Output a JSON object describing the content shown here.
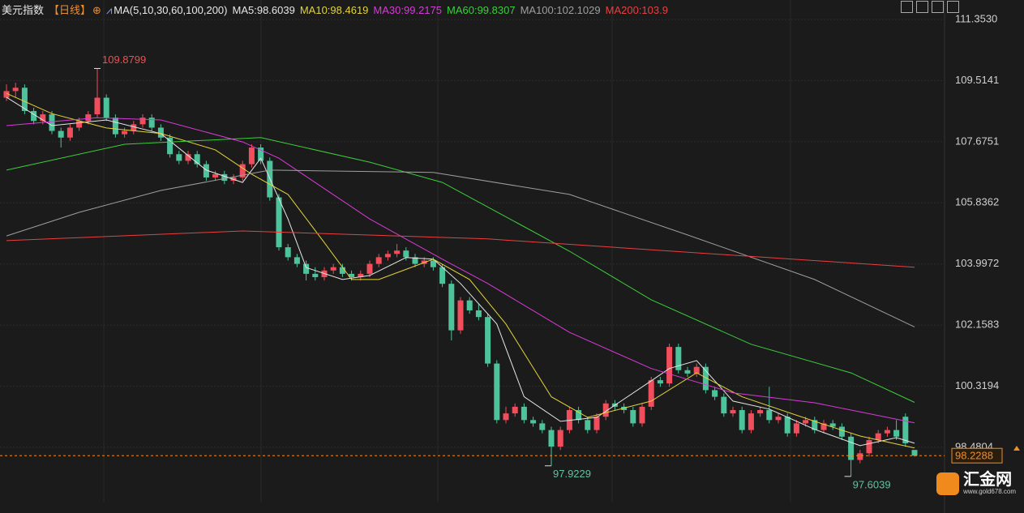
{
  "chart_data": {
    "type": "candlestick",
    "title": "美元指数",
    "subtitle": "【日线】",
    "indicator": "MA(5,10,30,60,100,200)",
    "up_color": "#f04e5c",
    "down_color": "#4cc39a",
    "ylim": [
      96.82,
      111.94
    ],
    "yticks": [
      {
        "value": 111.353,
        "label": "111.3530"
      },
      109.5141,
      107.6751,
      105.8362,
      103.9972,
      102.1583,
      100.3194,
      98.4804
    ],
    "grid": true,
    "ohlc": [
      [
        109.0,
        109.4,
        108.9,
        109.2
      ],
      [
        109.2,
        109.45,
        109.0,
        109.3
      ],
      [
        109.3,
        109.4,
        108.5,
        108.6
      ],
      [
        108.6,
        108.7,
        108.2,
        108.3
      ],
      [
        108.3,
        108.6,
        108.2,
        108.5
      ],
      [
        108.5,
        108.6,
        107.9,
        108.0
      ],
      [
        108.0,
        108.1,
        107.5,
        107.8
      ],
      [
        107.8,
        108.2,
        107.7,
        108.1
      ],
      [
        108.1,
        108.4,
        108.0,
        108.3
      ],
      [
        108.3,
        108.6,
        108.2,
        108.5
      ],
      [
        108.5,
        109.8799,
        108.4,
        109.0
      ],
      [
        109.0,
        109.1,
        108.3,
        108.4
      ],
      [
        108.4,
        108.5,
        107.8,
        107.9
      ],
      [
        107.9,
        108.1,
        107.8,
        108.0
      ],
      [
        108.0,
        108.3,
        107.9,
        108.2
      ],
      [
        108.2,
        108.5,
        108.1,
        108.4
      ],
      [
        108.4,
        108.5,
        108.0,
        108.1
      ],
      [
        108.1,
        108.2,
        107.7,
        107.8
      ],
      [
        107.8,
        107.9,
        107.2,
        107.3
      ],
      [
        107.3,
        107.4,
        107.0,
        107.1
      ],
      [
        107.1,
        107.4,
        107.0,
        107.3
      ],
      [
        107.3,
        107.4,
        106.9,
        107.0
      ],
      [
        107.0,
        107.1,
        106.5,
        106.6
      ],
      [
        106.6,
        106.8,
        106.5,
        106.7
      ],
      [
        106.7,
        106.8,
        106.4,
        106.5
      ],
      [
        106.5,
        106.7,
        106.4,
        106.6
      ],
      [
        106.6,
        107.1,
        106.5,
        107.0
      ],
      [
        107.0,
        107.6,
        106.9,
        107.5
      ],
      [
        107.5,
        107.6,
        107.0,
        107.1
      ],
      [
        107.1,
        107.2,
        105.9,
        106.0
      ],
      [
        106.0,
        106.1,
        104.4,
        104.5
      ],
      [
        104.5,
        104.6,
        104.1,
        104.2
      ],
      [
        104.2,
        104.3,
        103.9,
        104.0
      ],
      [
        104.0,
        104.1,
        103.5,
        103.7
      ],
      [
        103.7,
        103.9,
        103.5,
        103.6
      ],
      [
        103.6,
        103.9,
        103.5,
        103.8
      ],
      [
        103.8,
        104.0,
        103.7,
        103.9
      ],
      [
        103.9,
        104.0,
        103.6,
        103.7
      ],
      [
        103.7,
        103.8,
        103.5,
        103.6
      ],
      [
        103.6,
        103.8,
        103.5,
        103.7
      ],
      [
        103.7,
        104.1,
        103.6,
        104.0
      ],
      [
        104.0,
        104.3,
        103.9,
        104.2
      ],
      [
        104.2,
        104.4,
        104.1,
        104.3
      ],
      [
        104.3,
        104.6,
        104.2,
        104.4
      ],
      [
        104.4,
        104.5,
        104.1,
        104.2
      ],
      [
        104.2,
        104.3,
        103.9,
        104.0
      ],
      [
        104.0,
        104.2,
        103.9,
        104.1
      ],
      [
        104.1,
        104.2,
        103.8,
        103.9
      ],
      [
        103.9,
        104.0,
        103.3,
        103.4
      ],
      [
        103.4,
        103.5,
        101.7,
        102.0
      ],
      [
        102.0,
        103.0,
        101.9,
        102.9
      ],
      [
        102.9,
        103.0,
        102.5,
        102.6
      ],
      [
        102.6,
        102.8,
        102.3,
        102.4
      ],
      [
        102.4,
        102.5,
        100.9,
        101.0
      ],
      [
        101.0,
        101.1,
        99.2,
        99.3
      ],
      [
        99.3,
        99.7,
        99.2,
        99.5
      ],
      [
        99.5,
        99.8,
        99.4,
        99.7
      ],
      [
        99.7,
        99.8,
        99.2,
        99.3
      ],
      [
        99.3,
        99.4,
        99.1,
        99.2
      ],
      [
        99.2,
        99.3,
        98.9,
        99.0
      ],
      [
        99.0,
        99.1,
        97.9229,
        98.5
      ],
      [
        98.5,
        99.1,
        98.4,
        99.0
      ],
      [
        99.0,
        99.7,
        98.9,
        99.6
      ],
      [
        99.6,
        99.7,
        99.2,
        99.3
      ],
      [
        99.3,
        99.4,
        98.9,
        99.0
      ],
      [
        99.0,
        99.5,
        98.9,
        99.4
      ],
      [
        99.4,
        99.9,
        99.3,
        99.8
      ],
      [
        99.8,
        99.9,
        99.6,
        99.7
      ],
      [
        99.7,
        99.8,
        99.5,
        99.6
      ],
      [
        99.6,
        99.7,
        99.1,
        99.2
      ],
      [
        99.2,
        99.8,
        99.1,
        99.7
      ],
      [
        99.7,
        100.6,
        99.6,
        100.5
      ],
      [
        100.5,
        100.6,
        100.3,
        100.4
      ],
      [
        100.4,
        101.6,
        100.3,
        101.5
      ],
      [
        101.5,
        101.6,
        100.7,
        100.8
      ],
      [
        100.8,
        100.9,
        100.6,
        100.7
      ],
      [
        100.7,
        101.0,
        100.6,
        100.9
      ],
      [
        100.9,
        101.0,
        100.1,
        100.2
      ],
      [
        100.2,
        100.3,
        99.9,
        100.0
      ],
      [
        100.0,
        100.1,
        99.4,
        99.5
      ],
      [
        99.5,
        99.7,
        99.4,
        99.6
      ],
      [
        99.6,
        99.7,
        98.9,
        99.0
      ],
      [
        99.0,
        99.6,
        98.9,
        99.5
      ],
      [
        99.5,
        99.7,
        99.4,
        99.6
      ],
      [
        99.6,
        100.3,
        99.2,
        99.3
      ],
      [
        99.3,
        99.5,
        99.2,
        99.4
      ],
      [
        99.4,
        99.5,
        98.8,
        98.9
      ],
      [
        98.9,
        99.3,
        98.8,
        99.2
      ],
      [
        99.2,
        99.4,
        99.1,
        99.3
      ],
      [
        99.3,
        99.4,
        98.9,
        99.0
      ],
      [
        99.0,
        99.3,
        98.9,
        99.2
      ],
      [
        99.2,
        99.3,
        99.0,
        99.1
      ],
      [
        99.1,
        99.2,
        98.7,
        98.8
      ],
      [
        98.8,
        98.9,
        97.6039,
        98.1
      ],
      [
        98.1,
        98.4,
        98.0,
        98.3
      ],
      [
        98.3,
        98.8,
        98.2,
        98.7
      ],
      [
        98.7,
        99.0,
        98.6,
        98.9
      ],
      [
        98.9,
        99.1,
        98.8,
        99.0
      ],
      [
        99.0,
        99.3,
        98.7,
        98.8
      ],
      [
        99.4,
        99.5,
        98.5,
        98.6
      ],
      [
        98.4,
        98.4,
        98.2,
        98.2288
      ]
    ],
    "series": [
      {
        "name": "MA5:98.6039",
        "color": "#e6e6e6",
        "x": [
          0,
          5,
          11,
          17,
          22,
          26,
          28,
          31,
          33,
          37,
          40,
          44,
          47,
          50,
          54,
          57,
          61,
          65,
          71,
          73,
          76,
          80,
          84,
          89,
          94,
          98,
          100
        ],
        "values": [
          109.01,
          108.16,
          108.33,
          107.92,
          106.82,
          106.45,
          107.18,
          105.35,
          103.89,
          103.53,
          103.65,
          104.19,
          104.14,
          103.41,
          102.19,
          100.0,
          99.26,
          99.38,
          100.48,
          100.85,
          101.09,
          99.87,
          99.63,
          99.02,
          98.53,
          98.77,
          98.6039
        ]
      },
      {
        "name": "MA10:98.4619",
        "color": "#e3d33a",
        "x": [
          0,
          5,
          11,
          17,
          23,
          27,
          31,
          35,
          38,
          41,
          47,
          51,
          55,
          60,
          64,
          71,
          76,
          81,
          89,
          94,
          100
        ],
        "values": [
          109.13,
          108.52,
          108.09,
          107.92,
          107.43,
          106.7,
          106.09,
          104.64,
          103.53,
          103.53,
          104.14,
          103.53,
          102.19,
          100.0,
          99.38,
          99.87,
          100.72,
          100.0,
          99.26,
          98.82,
          98.4619
        ]
      },
      {
        "name": "MA30:99.2175",
        "color": "#d93ad9",
        "x": [
          0,
          10,
          17,
          26,
          30,
          40,
          48,
          53,
          62,
          71,
          80,
          89,
          100
        ],
        "values": [
          108.16,
          108.4,
          108.33,
          107.67,
          107.18,
          105.35,
          104.14,
          103.41,
          101.94,
          100.85,
          100.12,
          99.82,
          99.2175
        ]
      },
      {
        "name": "MA60:99.8307",
        "color": "#3ccf3c",
        "x": [
          0,
          13,
          28,
          40,
          48,
          62,
          71,
          82,
          93,
          100
        ],
        "values": [
          106.82,
          107.6,
          107.8,
          107.06,
          106.45,
          104.38,
          102.92,
          101.58,
          100.72,
          99.8307
        ]
      },
      {
        "name": "MA100:102.1029",
        "color": "#9e9e9e",
        "x": [
          0,
          8,
          17,
          29,
          47,
          62,
          75,
          89,
          100
        ],
        "values": [
          104.84,
          105.55,
          106.21,
          106.82,
          106.75,
          106.09,
          104.87,
          103.53,
          102.1029
        ]
      },
      {
        "name": "MA200:103.9",
        "color": "#e84040",
        "x": [
          0,
          26,
          53,
          80,
          100
        ],
        "values": [
          104.7,
          104.99,
          104.75,
          104.26,
          103.9
        ]
      }
    ]
  },
  "watermark": {
    "name": "汇金网",
    "url": "www.gold678.com"
  }
}
